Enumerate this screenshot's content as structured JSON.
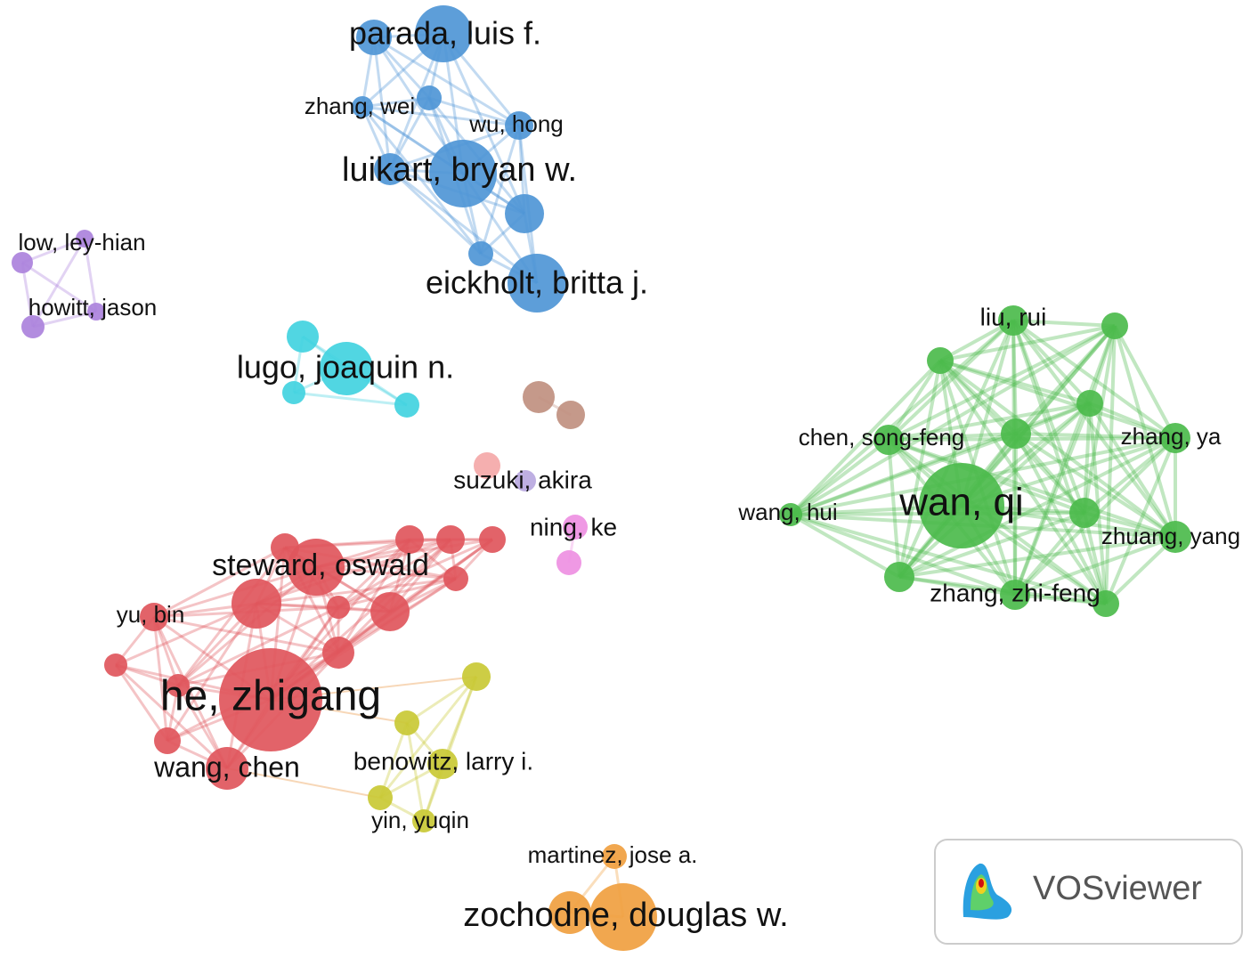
{
  "nodes": [
    "parada, luis f.",
    "zhang, wei",
    "wu, hong",
    "luikart, bryan w.",
    "eickholt, britta j.",
    "low, ley-hian",
    "howitt, jason",
    "lugo, joaquin n.",
    "suzuki, akira",
    "ning, ke",
    "he, zhigang",
    "steward, oswald",
    "yu, bin",
    "wang, chen",
    "benowitz, larry i.",
    "yin, yuqin",
    "zochodne, douglas w.",
    "martinez, jose a.",
    "wan, qi",
    "liu, rui",
    "chen, song-feng",
    "zhang, ya",
    "wang, hui",
    "zhuang, yang",
    "zhang, zhi-feng"
  ],
  "logo": {
    "text": "VOSviewer"
  }
}
